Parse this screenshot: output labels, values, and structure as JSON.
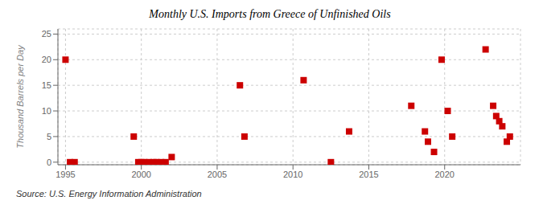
{
  "chart_data": {
    "type": "scatter",
    "title": "Monthly U.S. Imports from Greece of Unfinished Oils",
    "ylabel": "Thousand Barrels per Day",
    "annotations": [
      "Source: U.S. Energy Information Administration"
    ],
    "x": [
      1995.0,
      1995.3,
      1995.6,
      1999.5,
      1999.8,
      2000.0,
      2000.2,
      2000.5,
      2000.8,
      2001.0,
      2001.3,
      2001.6,
      2002.0,
      2006.5,
      2006.8,
      2010.7,
      2012.5,
      2013.7,
      2017.8,
      2018.7,
      2018.9,
      2019.3,
      2019.8,
      2020.2,
      2020.5,
      2022.7,
      2023.2,
      2023.4,
      2023.6,
      2023.8,
      2024.1,
      2024.3
    ],
    "values": [
      20,
      0,
      0,
      5,
      0,
      0,
      0,
      0,
      0,
      0,
      0,
      0,
      1,
      15,
      5,
      16,
      0,
      6,
      11,
      6,
      4,
      2,
      20,
      10,
      5,
      22,
      11,
      9,
      8,
      7,
      4,
      5
    ],
    "color": "#cc0000",
    "marker": "square",
    "xlim": [
      1994.5,
      2025
    ],
    "ylim": [
      -0.5,
      26
    ],
    "xticks": [
      1995,
      2000,
      2005,
      2010,
      2015,
      2020
    ],
    "yticks": [
      0,
      5,
      10,
      15,
      20,
      25
    ],
    "grid": true
  }
}
